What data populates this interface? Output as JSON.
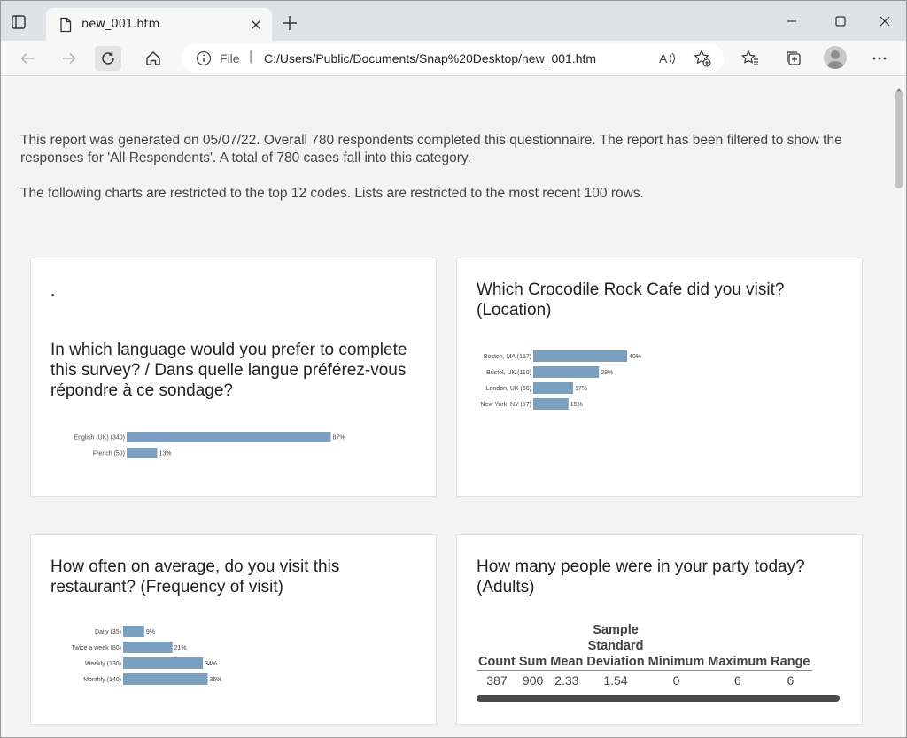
{
  "browser": {
    "tab_title": "new_001.htm",
    "address_scheme": "File",
    "address_url": "C:/Users/Public/Documents/Snap%20Desktop/new_001.htm"
  },
  "report": {
    "intro_1": "This report was generated on 05/07/22. Overall 780 respondents completed this questionnaire. The report has been filtered to show the responses for 'All Respondents'. A total of 780 cases fall into this category.",
    "intro_2": "The following charts are restricted to the top 12 codes. Lists are restricted to the most recent 100 rows."
  },
  "cards": {
    "language": {
      "dot": ".",
      "title": "In which language would you prefer to complete this survey? / Dans quelle langue préférez-vous répondre à ce sondage?"
    },
    "location": {
      "title": "Which Crocodile Rock Cafe did you visit? (Location)"
    },
    "frequency": {
      "title": "How often on average, do you visit this restaurant? (Frequency of visit)"
    },
    "adults": {
      "title": "How many people were in your party today? (Adults)",
      "headers": {
        "count": "Count",
        "sum": "Sum",
        "mean": "Mean",
        "sd_1": "Sample",
        "sd_2": "Standard",
        "sd_3": "Deviation",
        "minimum": "Minimum",
        "maximum": "Maximum",
        "range": "Range"
      },
      "values": {
        "count": "387",
        "sum": "900",
        "mean": "2.33",
        "sd": "1.54",
        "minimum": "0",
        "maximum": "6",
        "range": "6"
      }
    }
  },
  "chart_data": [
    {
      "type": "bar",
      "orientation": "horizontal",
      "categories": [
        "English (UK) (340)",
        "French (50)"
      ],
      "values": [
        87,
        13
      ],
      "value_labels": [
        "87%",
        "13%"
      ],
      "bar_color": "#7a9fbf"
    },
    {
      "type": "bar",
      "orientation": "horizontal",
      "categories": [
        "Boston, MA (157)",
        "Bristol, UK (110)",
        "London, UK (66)",
        "New York, NY (57)"
      ],
      "values": [
        40,
        28,
        17,
        15
      ],
      "value_labels": [
        "40%",
        "28%",
        "17%",
        "15%"
      ],
      "bar_color": "#7a9fbf"
    },
    {
      "type": "bar",
      "orientation": "horizontal",
      "categories": [
        "Daily (35)",
        "Twice a week (80)",
        "Weekly (130)",
        "Monthly (140)"
      ],
      "values": [
        9,
        21,
        34,
        36
      ],
      "value_labels": [
        "9%",
        "21%",
        "34%",
        "36%"
      ],
      "bar_color": "#7a9fbf"
    }
  ]
}
